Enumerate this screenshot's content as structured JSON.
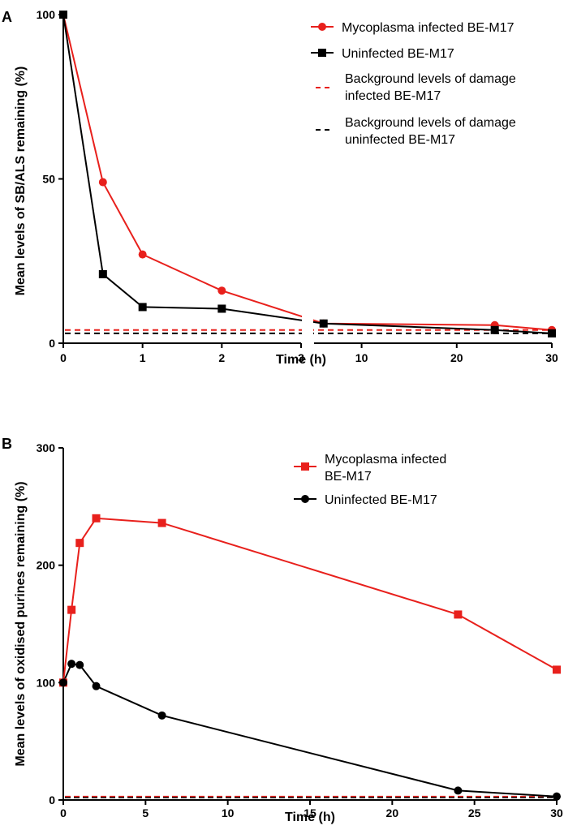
{
  "colors": {
    "red": "#e8201c",
    "black": "#000000"
  },
  "chart_data": [
    {
      "panel": "A",
      "type": "line",
      "xlabel": "Time (h)",
      "ylabel": "Mean levels of SB/ALS remaining (%)",
      "ylim": [
        0,
        100
      ],
      "yticks": [
        "0",
        "50",
        "100"
      ],
      "x_axis_break": {
        "segment1_range": [
          0,
          3
        ],
        "segment2_range": [
          5,
          30
        ]
      },
      "xticks_segment1": [
        "0",
        "1",
        "2",
        "3"
      ],
      "xticks_segment2": [
        "10",
        "20",
        "30"
      ],
      "series": [
        {
          "name": "Mycoplasma infected BE-M17",
          "color": "#e8201c",
          "marker": "circle",
          "x": [
            0,
            0.5,
            1,
            2,
            6,
            24,
            30
          ],
          "values": [
            100,
            49,
            27,
            16,
            6,
            5.5,
            4
          ]
        },
        {
          "name": "Uninfected BE-M17",
          "color": "#000000",
          "marker": "square",
          "x": [
            0,
            0.5,
            1,
            2,
            6,
            24,
            30
          ],
          "values": [
            100,
            21,
            11,
            10.5,
            6,
            4,
            3
          ]
        }
      ],
      "reference_lines": [
        {
          "name": "Background levels of damage infected BE-M17",
          "name_line1": "Background levels of damage",
          "name_line2": "infected BE-M17",
          "color": "#e8201c",
          "value": 4
        },
        {
          "name": "Background levels of damage uninfected BE-M17",
          "name_line1": "Background levels of damage",
          "name_line2": "uninfected BE-M17",
          "color": "#000000",
          "value": 3
        }
      ],
      "legend_position": "top-right"
    },
    {
      "panel": "B",
      "type": "line",
      "xlabel": "Time (h)",
      "ylabel": "Mean levels of oxidised purines remaining (%)",
      "xlim": [
        0,
        30
      ],
      "ylim": [
        0,
        300
      ],
      "xticks": [
        "0",
        "5",
        "10",
        "15",
        "20",
        "25",
        "30"
      ],
      "yticks": [
        "0",
        "100",
        "200",
        "300"
      ],
      "series": [
        {
          "name": "Mycoplasma infected BE-M17",
          "name_line1": "Mycoplasma infected",
          "name_line2": "BE-M17",
          "color": "#e8201c",
          "marker": "square",
          "x": [
            0,
            0.5,
            1,
            2,
            6,
            24,
            30
          ],
          "values": [
            100,
            162,
            219,
            240,
            236,
            158,
            111
          ]
        },
        {
          "name": "Uninfected BE-M17",
          "color": "#000000",
          "marker": "circle",
          "x": [
            0,
            0.5,
            1,
            2,
            6,
            24,
            30
          ],
          "values": [
            100,
            116,
            115,
            97,
            72,
            8,
            3
          ]
        }
      ],
      "reference_lines": [
        {
          "color": "#e8201c",
          "value": 2
        },
        {
          "color": "#000000",
          "value": 2
        }
      ],
      "legend_position": "top-right"
    }
  ]
}
